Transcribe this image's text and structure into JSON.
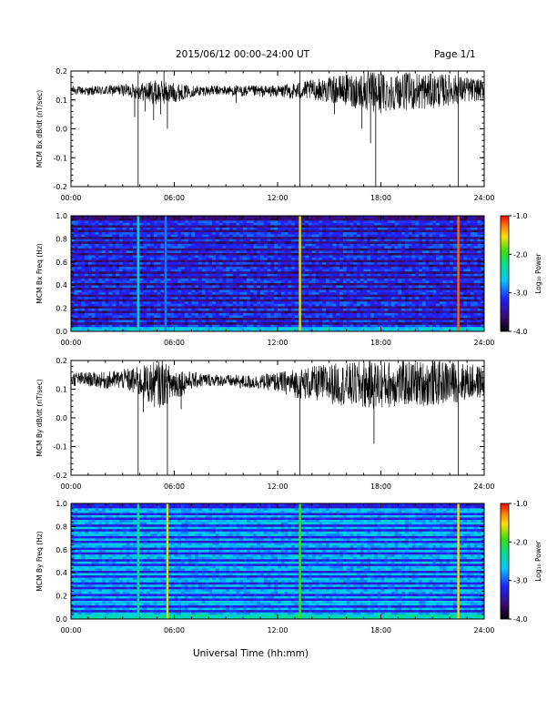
{
  "header": {
    "title": "2015/06/12  00:00–24:00 UT",
    "page": "Page 1/1"
  },
  "footer": {
    "xlabel": "Universal Time (hh:mm)"
  },
  "colors": {
    "trace": "#000000",
    "axes": "#000000",
    "background": "#ffffff"
  },
  "chart_data": [
    {
      "type": "line",
      "ylabel": "MCM Bx dB/dt (nT/sec)",
      "xlim": [
        0,
        24
      ],
      "ylim": [
        -0.2,
        0.2
      ],
      "x_ticks": [
        "00:00",
        "06:00",
        "12:00",
        "18:00",
        "24:00"
      ],
      "y_ticks": [
        "-0.2",
        "-0.1",
        "0.0",
        "0.1",
        "0.2"
      ],
      "envelope": {
        "x": [
          0,
          1,
          2,
          3,
          4,
          5,
          6,
          7,
          8,
          9,
          10,
          11,
          12,
          13,
          14,
          15,
          16,
          17,
          18,
          19,
          20,
          21,
          22,
          23,
          24
        ],
        "upper": [
          0.15,
          0.145,
          0.15,
          0.155,
          0.16,
          0.17,
          0.16,
          0.15,
          0.15,
          0.15,
          0.15,
          0.15,
          0.15,
          0.16,
          0.17,
          0.18,
          0.19,
          0.2,
          0.2,
          0.19,
          0.2,
          0.19,
          0.19,
          0.18,
          0.17
        ],
        "lower": [
          0.12,
          0.115,
          0.115,
          0.115,
          0.1,
          0.08,
          0.09,
          0.11,
          0.115,
          0.115,
          0.11,
          0.11,
          0.11,
          0.1,
          0.1,
          0.09,
          0.08,
          0.06,
          0.05,
          0.07,
          0.06,
          0.07,
          0.08,
          0.09,
          0.1
        ]
      },
      "spikes": [
        {
          "x": 3.9,
          "y": -0.2
        },
        {
          "x": 3.7,
          "y": 0.04
        },
        {
          "x": 4.3,
          "y": 0.06
        },
        {
          "x": 4.8,
          "y": 0.03
        },
        {
          "x": 5.2,
          "y": 0.05
        },
        {
          "x": 5.6,
          "y": -0.0
        },
        {
          "x": 9.6,
          "y": 0.09
        },
        {
          "x": 13.3,
          "y": -0.2
        },
        {
          "x": 13.3,
          "y": 0.2
        },
        {
          "x": 15.3,
          "y": 0.05
        },
        {
          "x": 16.9,
          "y": 0.0
        },
        {
          "x": 17.4,
          "y": -0.05
        },
        {
          "x": 17.7,
          "y": -0.2
        },
        {
          "x": 22.5,
          "y": -0.2
        },
        {
          "x": 22.5,
          "y": 0.2
        },
        {
          "x": 3.9,
          "y": 0.2
        },
        {
          "x": 5.4,
          "y": 0.2
        }
      ]
    },
    {
      "type": "heatmap",
      "ylabel": "MCM Bx Freq (Hz)",
      "xlim": [
        0,
        24
      ],
      "ylim": [
        0,
        1
      ],
      "x_ticks": [
        "00:00",
        "06:00",
        "12:00",
        "18:00",
        "24:00"
      ],
      "y_ticks": [
        "0.0",
        "0.2",
        "0.4",
        "0.6",
        "0.8",
        "1.0"
      ],
      "colorbar": {
        "label": "Log₁₀ Power",
        "ticks": [
          "-1.0",
          "-2.0",
          "-3.0",
          "-4.0"
        ],
        "range": [
          -4,
          -1
        ]
      },
      "background_level": -3.6,
      "harmonic_band_freqs": [
        0.02,
        0.05,
        0.09,
        0.14,
        0.19,
        0.24,
        0.29,
        0.34,
        0.39,
        0.44,
        0.49,
        0.54,
        0.59,
        0.64,
        0.69,
        0.74,
        0.79,
        0.84,
        0.89,
        0.94
      ],
      "harmonic_band_level": -3.1,
      "low_freq_level": -2.6,
      "vertical_streaks": [
        {
          "x": 3.9,
          "level": -2.5
        },
        {
          "x": 5.5,
          "level": -2.9
        },
        {
          "x": 13.3,
          "level": -1.6
        },
        {
          "x": 22.5,
          "level": -1.2
        }
      ]
    },
    {
      "type": "line",
      "ylabel": "MCM By dB/dt (nT/sec)",
      "xlim": [
        0,
        24
      ],
      "ylim": [
        -0.2,
        0.2
      ],
      "x_ticks": [
        "00:00",
        "06:00",
        "12:00",
        "18:00",
        "24:00"
      ],
      "y_ticks": [
        "-0.2",
        "-0.1",
        "0.0",
        "0.1",
        "0.2"
      ],
      "envelope": {
        "x": [
          0,
          1,
          2,
          3,
          4,
          5,
          6,
          7,
          8,
          9,
          10,
          11,
          12,
          13,
          14,
          15,
          16,
          17,
          18,
          19,
          20,
          21,
          22,
          23,
          24
        ],
        "upper": [
          0.16,
          0.16,
          0.16,
          0.17,
          0.18,
          0.2,
          0.18,
          0.16,
          0.155,
          0.15,
          0.15,
          0.15,
          0.16,
          0.17,
          0.18,
          0.19,
          0.19,
          0.2,
          0.2,
          0.2,
          0.2,
          0.2,
          0.2,
          0.19,
          0.18
        ],
        "lower": [
          0.11,
          0.11,
          0.1,
          0.1,
          0.07,
          0.03,
          0.06,
          0.1,
          0.11,
          0.11,
          0.1,
          0.1,
          0.09,
          0.07,
          0.06,
          0.05,
          0.04,
          0.03,
          0.03,
          0.04,
          0.04,
          0.04,
          0.05,
          0.06,
          0.07
        ]
      },
      "spikes": [
        {
          "x": 3.9,
          "y": -0.2
        },
        {
          "x": 5.6,
          "y": -0.2
        },
        {
          "x": 4.2,
          "y": 0.02
        },
        {
          "x": 6.4,
          "y": 0.03
        },
        {
          "x": 13.3,
          "y": -0.2
        },
        {
          "x": 17.6,
          "y": -0.09
        },
        {
          "x": 22.5,
          "y": -0.2
        },
        {
          "x": 5.3,
          "y": 0.2
        },
        {
          "x": 22.5,
          "y": 0.2
        }
      ]
    },
    {
      "type": "heatmap",
      "ylabel": "MCM By Freq (Hz)",
      "xlim": [
        0,
        24
      ],
      "ylim": [
        0,
        1
      ],
      "x_ticks": [
        "00:00",
        "06:00",
        "12:00",
        "18:00",
        "24:00"
      ],
      "y_ticks": [
        "0.0",
        "0.2",
        "0.4",
        "0.6",
        "0.8",
        "1.0"
      ],
      "colorbar": {
        "label": "Log₁₀ Power",
        "ticks": [
          "-1.0",
          "-2.0",
          "-3.0",
          "-4.0"
        ],
        "range": [
          -4,
          -1
        ]
      },
      "background_level": -3.25,
      "harmonic_band_freqs": [
        0.02,
        0.05,
        0.09,
        0.14,
        0.19,
        0.24,
        0.29,
        0.34,
        0.39,
        0.44,
        0.49,
        0.54,
        0.59,
        0.64,
        0.69,
        0.74,
        0.79,
        0.84,
        0.89,
        0.94
      ],
      "harmonic_band_level": -2.7,
      "low_freq_level": -2.4,
      "vertical_streaks": [
        {
          "x": 3.9,
          "level": -2.3
        },
        {
          "x": 5.6,
          "level": -1.6
        },
        {
          "x": 13.3,
          "level": -1.9
        },
        {
          "x": 22.5,
          "level": -1.5
        }
      ]
    }
  ]
}
